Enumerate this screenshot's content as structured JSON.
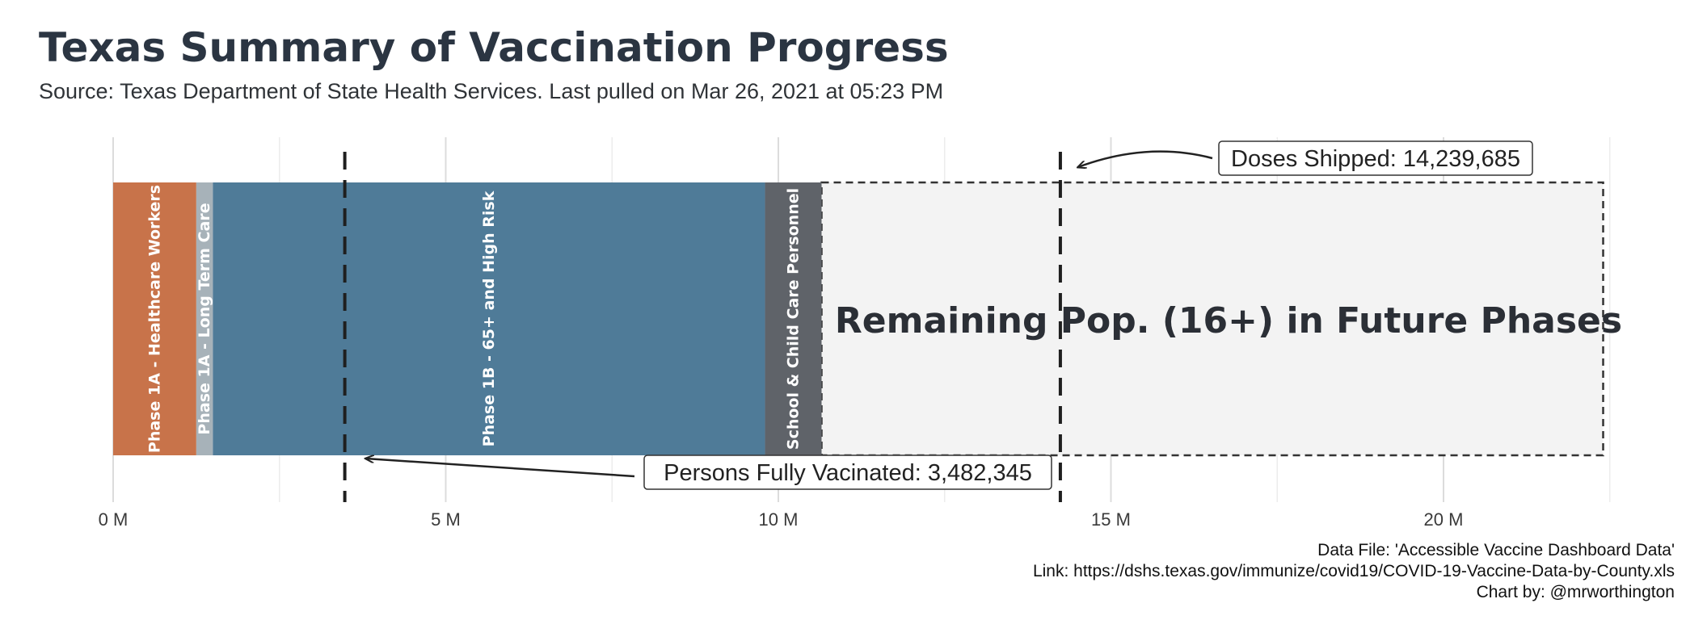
{
  "chart_data": {
    "type": "bar",
    "orientation": "horizontal-stacked",
    "title": "Texas Summary of Vaccination Progress",
    "subtitle": "Source: Texas Department of State Health Services. Last pulled on Mar 26, 2021 at 05:23 PM",
    "xlim": [
      0,
      22500000
    ],
    "xticks": [
      {
        "value": 0,
        "label": "0 M"
      },
      {
        "value": 5000000,
        "label": "5 M"
      },
      {
        "value": 10000000,
        "label": "10 M"
      },
      {
        "value": 15000000,
        "label": "15 M"
      },
      {
        "value": 20000000,
        "label": "20 M"
      }
    ],
    "minor_gridlines": [
      2500000,
      7500000,
      12500000,
      17500000,
      22500000
    ],
    "grid": true,
    "segments": [
      {
        "label": "Phase 1A - Healthcare Workers",
        "start": 0,
        "end": 1250000,
        "color": "#c8734a"
      },
      {
        "label": "Phase 1A - Long Term Care",
        "start": 1250000,
        "end": 1500000,
        "color": "#a7b2b9"
      },
      {
        "label": "Phase 1B - 65+ and High Risk",
        "start": 1500000,
        "end": 9800000,
        "color": "#4f7b98"
      },
      {
        "label": "School & Child Care Personnel",
        "start": 9800000,
        "end": 10650000,
        "color": "#5f6369"
      }
    ],
    "remaining": {
      "label": "Remaining Pop. (16+) in Future Phases",
      "start": 10650000,
      "end": 22400000,
      "color": "#f3f3f3"
    },
    "reference_lines": [
      {
        "name": "persons_fully_vaccinated",
        "value": 3482345,
        "label": "Persons Fully Vacinated: 3,482,345"
      },
      {
        "name": "doses_shipped",
        "value": 14239685,
        "label": "Doses Shipped: 14,239,685"
      }
    ],
    "captions": [
      "Data File: 'Accessible Vaccine Dashboard Data'",
      "Link: https://dshs.texas.gov/immunize/covid19/COVID-19-Vaccine-Data-by-County.xls",
      "Chart by: @mrworthington"
    ]
  }
}
